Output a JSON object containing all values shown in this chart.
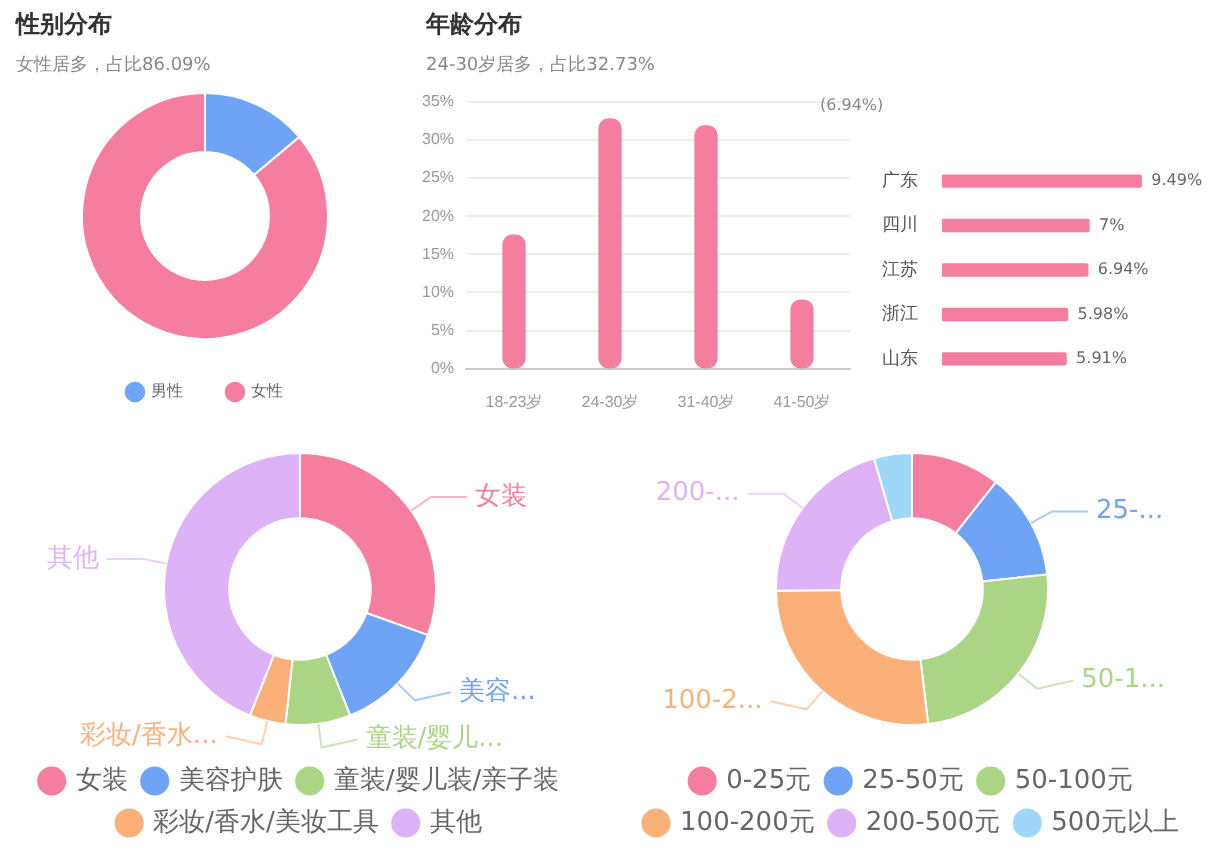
{
  "chart_data": [
    {
      "type": "donut",
      "title": "性别分布",
      "subtitle": "女性居多，占比86.09%",
      "categories": [
        "男性",
        "女性"
      ],
      "values": [
        13.91,
        86.09
      ],
      "colors": [
        "#6fa3f5",
        "#f57ea0"
      ],
      "legend": "bottom"
    },
    {
      "type": "bar",
      "title": "年龄分布",
      "subtitle": "24-30岁居多，占比32.73%",
      "categories": [
        "18-23岁",
        "24-30岁",
        "31-40岁",
        "41-50岁"
      ],
      "values": [
        17.5,
        32.73,
        31.8,
        9
      ],
      "color": "#f57ea0",
      "ylim": [
        0,
        35
      ],
      "yticks": [
        {
          "value": 0,
          "label": "0%"
        },
        {
          "value": 5,
          "label": "5%"
        },
        {
          "value": 10,
          "label": "10%"
        },
        {
          "value": 15,
          "label": "15%"
        },
        {
          "value": 20,
          "label": "20%"
        },
        {
          "value": 25,
          "label": "25%"
        },
        {
          "value": 30,
          "label": "30%"
        },
        {
          "value": 35,
          "label": "35%"
        }
      ],
      "grid": "y"
    },
    {
      "type": "bar",
      "orientation": "horizontal",
      "categories": [
        "广东",
        "四川",
        "江苏",
        "浙江",
        "山东"
      ],
      "values": [
        9.49,
        7,
        6.94,
        5.98,
        5.91
      ],
      "color": "#f57ea0",
      "tick_labels": "y",
      "value_labels": [
        "9.49%",
        "7%",
        "6.94%",
        "5.98%",
        "5.91%"
      ],
      "annotations": [
        "(6.94%)"
      ]
    },
    {
      "type": "donut",
      "categories": [
        "女装",
        "美容护肤",
        "童装/婴儿装/亲子装",
        "彩妆/香水/美妆工具",
        "其他"
      ],
      "values": [
        30.5,
        13.5,
        7.7,
        4.3,
        44
      ],
      "colors": [
        "#f57ea0",
        "#6fa3f5",
        "#a9d585",
        "#fbb07a",
        "#deb2f7"
      ],
      "legend": "bottom",
      "annotations": [
        {
          "text": "女装",
          "x": "女装"
        },
        {
          "text": "美容...",
          "x": "美容护肤"
        },
        {
          "text": "童装/婴儿...",
          "x": "童装/婴儿装/亲子装"
        },
        {
          "text": "彩妆/香水...",
          "x": "彩妆/香水/美妆工具"
        },
        {
          "text": "其他",
          "x": "其他"
        }
      ]
    },
    {
      "type": "donut",
      "categories": [
        "0-25元",
        "25-50元",
        "50-100元",
        "100-200元",
        "200-500元",
        "500元以上"
      ],
      "values": [
        10.6,
        12.7,
        24.8,
        26.7,
        20.7,
        4.5
      ],
      "colors": [
        "#f57ea0",
        "#6fa3f5",
        "#a9d585",
        "#fbb07a",
        "#deb2f7",
        "#9fd8f7"
      ],
      "legend": "bottom",
      "annotations": [
        {
          "text": "25-...",
          "x": "25-50元"
        },
        {
          "text": "50-1...",
          "x": "50-100元"
        },
        {
          "text": "100-2...",
          "x": "100-200元"
        },
        {
          "text": "200-...",
          "x": "200-500元"
        }
      ]
    }
  ]
}
